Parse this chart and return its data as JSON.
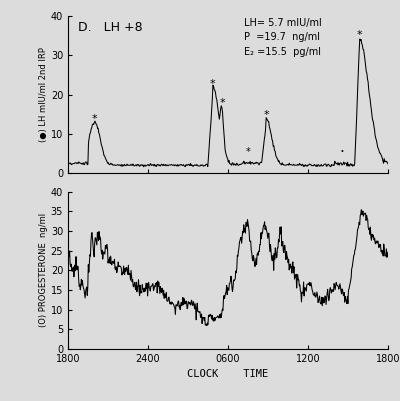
{
  "title": "D.   LH +8",
  "annotation_line1": "LH= 5.7 mIU/ml",
  "annotation_line2": "P  =19.7  ng/ml",
  "annotation_line3": "E₂ =15.5  pg/ml",
  "xlabel": "CLOCK    TIME",
  "ylabel_top": "(●) LH mIU/ml 2nd IRP",
  "ylabel_bottom": "(O) PROGESTERONE  ng/ml",
  "xtick_labels": [
    "1800",
    "2400",
    "0600",
    "1200",
    "1800"
  ],
  "bg_color": "#e8e8e8",
  "plot_bg": "#f0f0f0",
  "line_color": "#000000",
  "lh_ylim": [
    0,
    40
  ],
  "lh_yticks": [
    0,
    10,
    20,
    30,
    40
  ],
  "prog_ylim": [
    0,
    40
  ],
  "prog_yticks": [
    0,
    5,
    10,
    15,
    20,
    25,
    30,
    35,
    40
  ]
}
